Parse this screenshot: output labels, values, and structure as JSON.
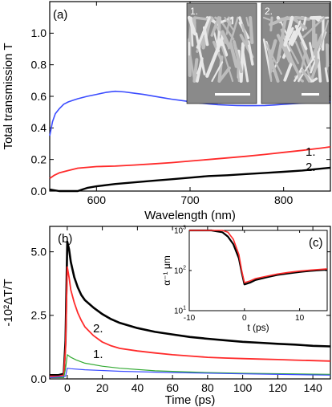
{
  "chart_data": [
    {
      "panel": "(a)",
      "type": "line",
      "xlabel": "Wavelength (nm)",
      "ylabel": "Total transmission T",
      "xlim": [
        550,
        850
      ],
      "ylim": [
        0,
        1.2
      ],
      "xticks": [
        "600",
        "700",
        "800"
      ],
      "xtick_values": [
        600,
        700,
        800
      ],
      "yticks": [
        "0.0",
        "0.2",
        "0.4",
        "0.6",
        "0.8",
        "1.0"
      ],
      "ytick_values": [
        0,
        0.2,
        0.4,
        0.6,
        0.8,
        1.0
      ],
      "series": [
        {
          "color": "#3b4cff",
          "x": [
            550,
            553,
            556,
            560,
            565,
            570,
            575,
            580,
            590,
            600,
            610,
            620,
            630,
            640,
            650,
            660,
            670,
            680,
            690,
            700,
            710,
            720,
            730,
            740,
            750,
            760,
            770,
            780,
            790,
            800,
            810,
            820,
            830,
            840,
            850
          ],
          "y": [
            0.35,
            0.44,
            0.49,
            0.52,
            0.55,
            0.565,
            0.575,
            0.585,
            0.6,
            0.612,
            0.625,
            0.632,
            0.628,
            0.62,
            0.612,
            0.602,
            0.592,
            0.582,
            0.574,
            0.566,
            0.558,
            0.552,
            0.547,
            0.544,
            0.542,
            0.541,
            0.541,
            0.542,
            0.545,
            0.549,
            0.553,
            0.557,
            0.56,
            0.563,
            0.566
          ]
        },
        {
          "color": "#ff2a2a",
          "label": "1.",
          "x": [
            550,
            555,
            560,
            570,
            580,
            600,
            620,
            640,
            660,
            680,
            700,
            720,
            740,
            760,
            780,
            800,
            820,
            840,
            850
          ],
          "y": [
            0.08,
            0.1,
            0.115,
            0.13,
            0.145,
            0.155,
            0.158,
            0.165,
            0.172,
            0.18,
            0.19,
            0.2,
            0.21,
            0.22,
            0.232,
            0.245,
            0.258,
            0.272,
            0.28
          ]
        },
        {
          "color": "#000000",
          "label": "2.",
          "x": [
            550,
            560,
            570,
            580,
            585,
            590,
            600,
            620,
            640,
            660,
            680,
            700,
            720,
            740,
            760,
            780,
            800,
            820,
            840,
            850
          ],
          "y": [
            0.01,
            0.0,
            0.0,
            0.0,
            0.01,
            0.02,
            0.03,
            0.045,
            0.055,
            0.065,
            0.075,
            0.085,
            0.095,
            0.1,
            0.108,
            0.115,
            0.122,
            0.13,
            0.142,
            0.148
          ]
        }
      ],
      "insets": [
        {
          "label": "1."
        },
        {
          "label": "2."
        }
      ]
    },
    {
      "panel": "(b)",
      "type": "line",
      "xlabel": "Time (ps)",
      "ylabel": "-10²ΔT/T",
      "xlim": [
        -10,
        150
      ],
      "ylim": [
        0,
        6.0
      ],
      "xticks": [
        "0",
        "20",
        "40",
        "60",
        "80",
        "100",
        "120",
        "140"
      ],
      "xtick_values": [
        0,
        20,
        40,
        60,
        80,
        100,
        120,
        140
      ],
      "yticks": [
        "0.0",
        "2.5",
        "5.0"
      ],
      "ytick_values": [
        0,
        2.5,
        5.0
      ],
      "series": [
        {
          "color": "#000000",
          "label": "2.",
          "x": [
            -10,
            -5,
            -2,
            -1,
            0,
            1,
            2,
            4,
            6,
            8,
            10,
            15,
            20,
            25,
            30,
            40,
            50,
            60,
            70,
            80,
            90,
            100,
            110,
            120,
            130,
            140,
            150
          ],
          "y": [
            0.15,
            0.15,
            0.2,
            1.5,
            5.4,
            5.1,
            4.6,
            4.0,
            3.6,
            3.3,
            3.1,
            2.8,
            2.55,
            2.35,
            2.2,
            2.0,
            1.85,
            1.75,
            1.65,
            1.58,
            1.52,
            1.46,
            1.42,
            1.38,
            1.35,
            1.3,
            1.28
          ]
        },
        {
          "color": "#ff2a2a",
          "label": "1.",
          "x": [
            -10,
            -5,
            -2,
            -1,
            0,
            1,
            2,
            4,
            6,
            8,
            10,
            15,
            20,
            25,
            30,
            40,
            50,
            60,
            70,
            80,
            90,
            100,
            110,
            120,
            130,
            140,
            150
          ],
          "y": [
            0.1,
            0.1,
            0.15,
            1.2,
            4.4,
            4.0,
            3.5,
            3.0,
            2.6,
            2.3,
            2.05,
            1.7,
            1.45,
            1.3,
            1.2,
            1.1,
            1.02,
            0.95,
            0.9,
            0.85,
            0.82,
            0.8,
            0.78,
            0.76,
            0.74,
            0.72,
            0.7
          ]
        },
        {
          "color": "#33aa33",
          "x": [
            -10,
            -2,
            -1,
            0,
            2,
            5,
            10,
            20,
            30,
            50,
            80,
            100,
            150
          ],
          "y": [
            0.05,
            0.05,
            0.4,
            0.95,
            0.85,
            0.75,
            0.62,
            0.5,
            0.42,
            0.32,
            0.25,
            0.22,
            0.18
          ]
        },
        {
          "color": "#3b4cff",
          "x": [
            -10,
            -1,
            0,
            2,
            10,
            30,
            60,
            100,
            150
          ],
          "y": [
            0.05,
            0.1,
            0.42,
            0.4,
            0.36,
            0.3,
            0.25,
            0.2,
            0.15
          ]
        }
      ]
    },
    {
      "panel": "(c)",
      "type": "line",
      "xlabel": "t (ps)",
      "ylabel": "α⁻¹ μm",
      "xlim": [
        -10,
        15
      ],
      "ylim": [
        10,
        1000
      ],
      "scale_y": "log",
      "xticks": [
        "-10",
        "0",
        "10"
      ],
      "xtick_values": [
        -10,
        0,
        10
      ],
      "yticks": [
        "10",
        "10",
        "10"
      ],
      "ytick_exps": [
        "1",
        "2",
        "3"
      ],
      "ytick_values": [
        10,
        100,
        1000
      ],
      "series": [
        {
          "color": "#000000",
          "x": [
            -10,
            -8,
            -6,
            -4,
            -3,
            -2,
            -1,
            -0.5,
            0,
            1,
            2,
            4,
            6,
            8,
            10,
            12,
            15
          ],
          "y": [
            1000,
            1000,
            1000,
            900,
            700,
            450,
            200,
            90,
            45,
            50,
            58,
            68,
            78,
            85,
            92,
            98,
            105
          ]
        },
        {
          "color": "#ff2a2a",
          "x": [
            -10,
            -8,
            -6,
            -4,
            -3,
            -2,
            -1,
            -0.5,
            0,
            1,
            2,
            4,
            6,
            8,
            10,
            12,
            15
          ],
          "y": [
            1000,
            1000,
            1000,
            1000,
            900,
            600,
            250,
            100,
            50,
            55,
            63,
            72,
            82,
            90,
            97,
            103,
            110
          ]
        }
      ]
    }
  ]
}
